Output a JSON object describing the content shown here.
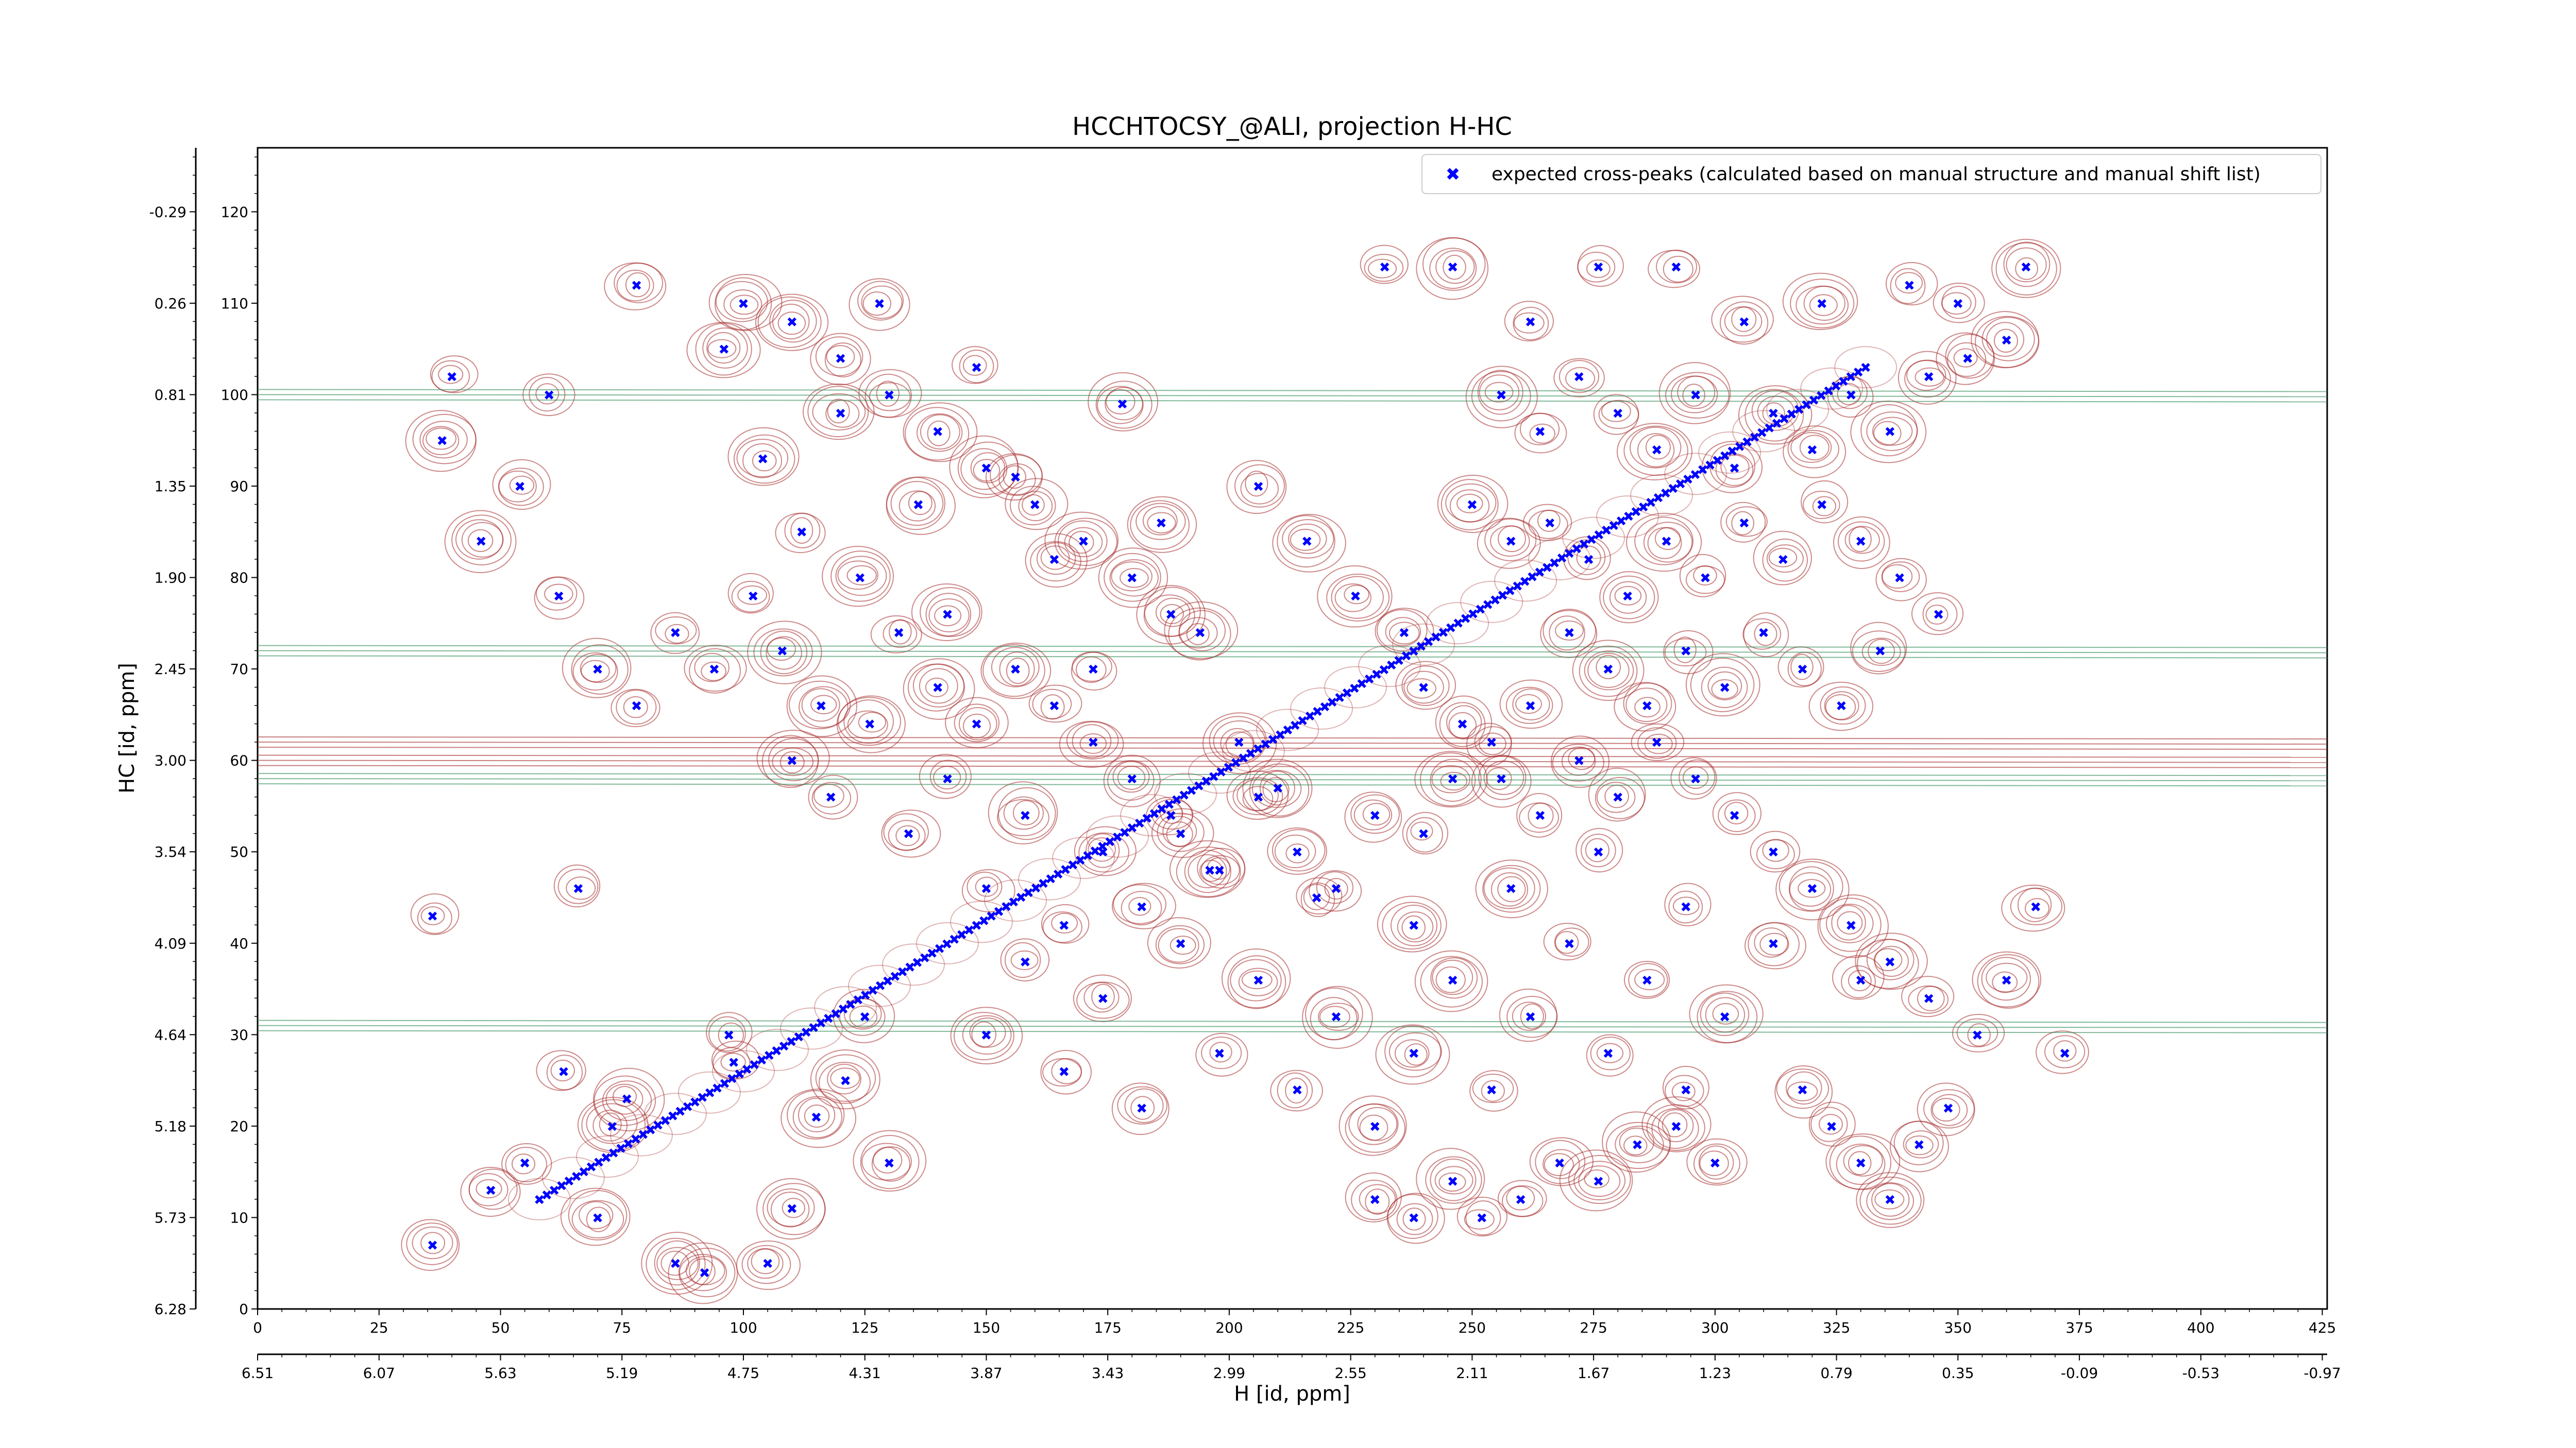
{
  "chart_data": {
    "type": "scatter",
    "title": "HCCHTOCSY_@ALI, projection H-HC",
    "xlabel": "H [id, ppm]",
    "ylabel": "HC [id, ppm]",
    "xlim": [
      0,
      426
    ],
    "ylim": [
      0,
      127
    ],
    "x_index_ticks": [
      "0",
      "25",
      "50",
      "75",
      "100",
      "125",
      "150",
      "175",
      "200",
      "225",
      "250",
      "275",
      "300",
      "325",
      "350",
      "375",
      "400",
      "425"
    ],
    "x_ppm_ticks": [
      "6.51",
      "6.07",
      "5.63",
      "5.19",
      "4.75",
      "4.31",
      "3.87",
      "3.43",
      "2.99",
      "2.55",
      "2.11",
      "1.67",
      "1.23",
      "0.79",
      "0.35",
      "-0.09",
      "-0.53",
      "-0.97"
    ],
    "y_index_ticks": [
      "0",
      "10",
      "20",
      "30",
      "40",
      "50",
      "60",
      "70",
      "80",
      "90",
      "100",
      "110",
      "120"
    ],
    "y_ppm_ticks": [
      "6.28",
      "5.73",
      "5.18",
      "4.64",
      "4.09",
      "3.54",
      "3.00",
      "2.45",
      "1.90",
      "1.35",
      "0.81",
      "0.26",
      "-0.29"
    ],
    "legend": {
      "position": "top-right",
      "entries": [
        "expected cross-peaks (calculated based on manual structure and manual shift list)"
      ]
    },
    "colors": {
      "marker": "#0000ff",
      "positive_contour": "#a52a2a",
      "negative_contour": "#2e8b57"
    },
    "series": [
      {
        "name": "expected cross-peaks (calculated based on manual structure and manual shift list)",
        "diagonal": {
          "x_start": 58,
          "x_end": 331,
          "y_start": 12,
          "y_end": 103
        },
        "points": [
          [
            36,
            7
          ],
          [
            36,
            43
          ],
          [
            38,
            95
          ],
          [
            48,
            13
          ],
          [
            55,
            16
          ],
          [
            63,
            26
          ],
          [
            66,
            46
          ],
          [
            70,
            10
          ],
          [
            73,
            20
          ],
          [
            76,
            23
          ],
          [
            86,
            5
          ],
          [
            92,
            4
          ],
          [
            97,
            30
          ],
          [
            98,
            27
          ],
          [
            105,
            5
          ],
          [
            110,
            11
          ],
          [
            115,
            21
          ],
          [
            121,
            25
          ],
          [
            125,
            32
          ],
          [
            130,
            16
          ],
          [
            40,
            102
          ],
          [
            60,
            100
          ],
          [
            78,
            112
          ],
          [
            96,
            105
          ],
          [
            104,
            93
          ],
          [
            112,
            85
          ],
          [
            120,
            98
          ],
          [
            128,
            110
          ],
          [
            136,
            88
          ],
          [
            142,
            76
          ],
          [
            148,
            103
          ],
          [
            156,
            91
          ],
          [
            164,
            82
          ],
          [
            172,
            70
          ],
          [
            178,
            99
          ],
          [
            186,
            86
          ],
          [
            194,
            74
          ],
          [
            202,
            62
          ],
          [
            210,
            57
          ],
          [
            218,
            45
          ],
          [
            150,
            30
          ],
          [
            158,
            38
          ],
          [
            166,
            26
          ],
          [
            174,
            34
          ],
          [
            182,
            22
          ],
          [
            190,
            40
          ],
          [
            198,
            28
          ],
          [
            206,
            36
          ],
          [
            214,
            24
          ],
          [
            222,
            32
          ],
          [
            230,
            20
          ],
          [
            238,
            28
          ],
          [
            246,
            36
          ],
          [
            254,
            24
          ],
          [
            262,
            32
          ],
          [
            270,
            40
          ],
          [
            278,
            28
          ],
          [
            286,
            36
          ],
          [
            294,
            24
          ],
          [
            302,
            32
          ],
          [
            110,
            60
          ],
          [
            118,
            56
          ],
          [
            126,
            64
          ],
          [
            134,
            52
          ],
          [
            142,
            58
          ],
          [
            150,
            46
          ],
          [
            158,
            54
          ],
          [
            166,
            42
          ],
          [
            174,
            50
          ],
          [
            182,
            44
          ],
          [
            190,
            52
          ],
          [
            198,
            48
          ],
          [
            206,
            56
          ],
          [
            214,
            50
          ],
          [
            222,
            46
          ],
          [
            230,
            54
          ],
          [
            238,
            42
          ],
          [
            246,
            58
          ],
          [
            254,
            62
          ],
          [
            262,
            66
          ],
          [
            256,
            100
          ],
          [
            264,
            96
          ],
          [
            272,
            102
          ],
          [
            280,
            98
          ],
          [
            288,
            94
          ],
          [
            296,
            100
          ],
          [
            304,
            92
          ],
          [
            312,
            98
          ],
          [
            320,
            94
          ],
          [
            328,
            100
          ],
          [
            336,
            96
          ],
          [
            344,
            102
          ],
          [
            352,
            104
          ],
          [
            360,
            106
          ],
          [
            250,
            88
          ],
          [
            258,
            84
          ],
          [
            266,
            86
          ],
          [
            274,
            82
          ],
          [
            282,
            78
          ],
          [
            290,
            84
          ],
          [
            298,
            80
          ],
          [
            306,
            86
          ],
          [
            314,
            82
          ],
          [
            322,
            88
          ],
          [
            330,
            84
          ],
          [
            338,
            80
          ],
          [
            346,
            76
          ],
          [
            270,
            74
          ],
          [
            278,
            70
          ],
          [
            286,
            66
          ],
          [
            294,
            72
          ],
          [
            302,
            68
          ],
          [
            310,
            74
          ],
          [
            318,
            70
          ],
          [
            326,
            66
          ],
          [
            334,
            72
          ],
          [
            240,
            68
          ],
          [
            248,
            64
          ],
          [
            256,
            58
          ],
          [
            264,
            54
          ],
          [
            272,
            60
          ],
          [
            280,
            56
          ],
          [
            288,
            62
          ],
          [
            296,
            58
          ],
          [
            304,
            54
          ],
          [
            312,
            50
          ],
          [
            320,
            46
          ],
          [
            328,
            42
          ],
          [
            336,
            38
          ],
          [
            344,
            34
          ],
          [
            318,
            24
          ],
          [
            324,
            20
          ],
          [
            330,
            16
          ],
          [
            336,
            12
          ],
          [
            342,
            18
          ],
          [
            348,
            22
          ],
          [
            354,
            30
          ],
          [
            360,
            36
          ],
          [
            366,
            44
          ],
          [
            372,
            28
          ],
          [
            230,
            12
          ],
          [
            238,
            10
          ],
          [
            246,
            14
          ],
          [
            252,
            10
          ],
          [
            260,
            12
          ],
          [
            268,
            16
          ],
          [
            276,
            14
          ],
          [
            284,
            18
          ],
          [
            292,
            20
          ],
          [
            300,
            16
          ],
          [
            100,
            110
          ],
          [
            110,
            108
          ],
          [
            120,
            104
          ],
          [
            130,
            100
          ],
          [
            140,
            96
          ],
          [
            150,
            92
          ],
          [
            160,
            88
          ],
          [
            170,
            84
          ],
          [
            180,
            80
          ],
          [
            188,
            76
          ],
          [
            46,
            84
          ],
          [
            54,
            90
          ],
          [
            62,
            78
          ],
          [
            70,
            70
          ],
          [
            78,
            66
          ],
          [
            86,
            74
          ],
          [
            94,
            70
          ],
          [
            102,
            78
          ],
          [
            108,
            72
          ],
          [
            116,
            66
          ],
          [
            124,
            80
          ],
          [
            132,
            74
          ],
          [
            140,
            68
          ],
          [
            148,
            64
          ],
          [
            156,
            70
          ],
          [
            164,
            66
          ],
          [
            172,
            62
          ],
          [
            180,
            58
          ],
          [
            188,
            54
          ],
          [
            196,
            48
          ],
          [
            232,
            114
          ],
          [
            246,
            114
          ],
          [
            262,
            108
          ],
          [
            276,
            114
          ],
          [
            292,
            114
          ],
          [
            306,
            108
          ],
          [
            322,
            110
          ],
          [
            340,
            112
          ],
          [
            350,
            110
          ],
          [
            364,
            114
          ],
          [
            240,
            52
          ],
          [
            258,
            46
          ],
          [
            276,
            50
          ],
          [
            294,
            44
          ],
          [
            312,
            40
          ],
          [
            330,
            36
          ],
          [
            206,
            90
          ],
          [
            216,
            84
          ],
          [
            226,
            78
          ],
          [
            236,
            74
          ]
        ]
      }
    ]
  }
}
